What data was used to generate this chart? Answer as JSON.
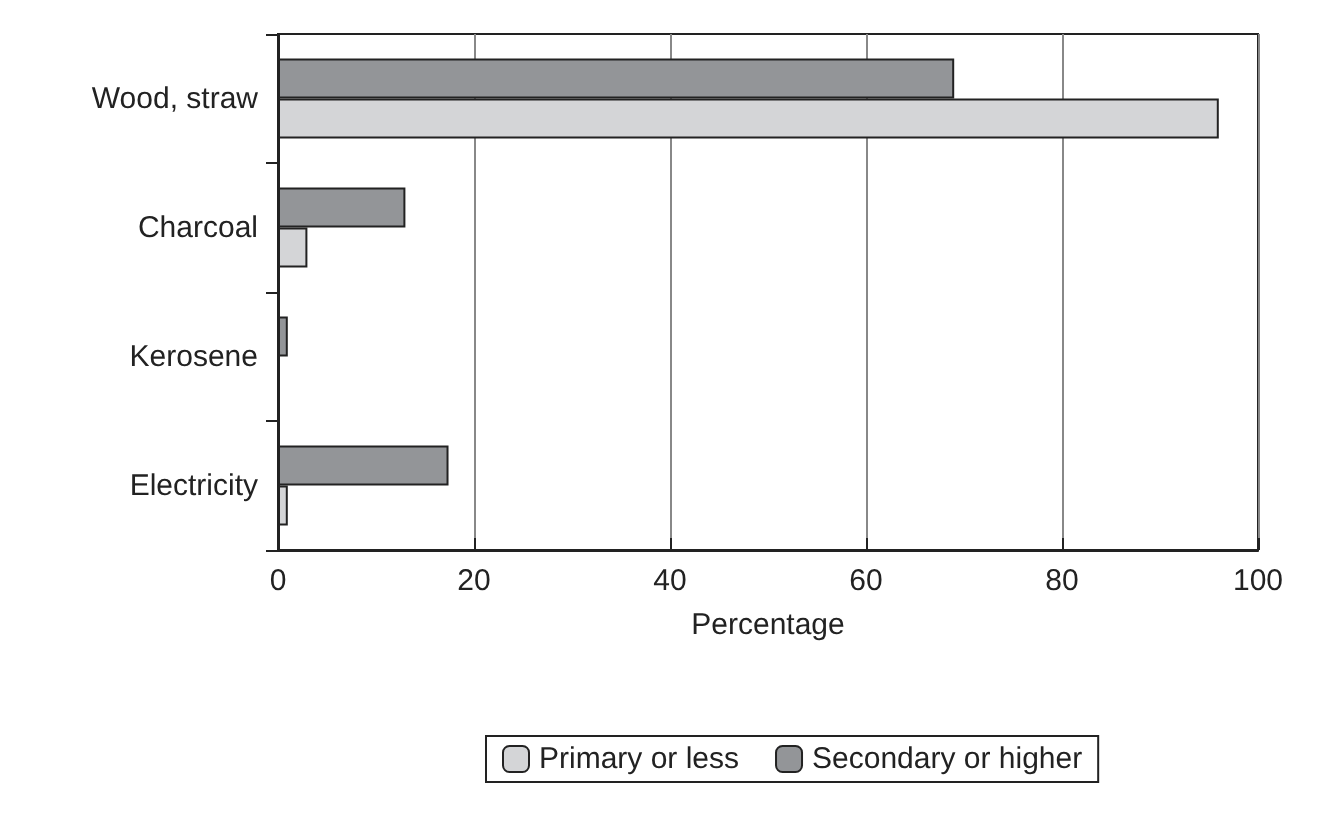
{
  "chart_data": {
    "type": "bar",
    "orientation": "horizontal",
    "categories": [
      "Wood, straw",
      "Charcoal",
      "Kerosene",
      "Electricity"
    ],
    "series": [
      {
        "name": "Secondary or higher",
        "color": "#939598",
        "values": [
          69,
          13,
          1,
          17.4
        ]
      },
      {
        "name": "Primary or less",
        "color": "#d4d5d7",
        "values": [
          96,
          3,
          null,
          1
        ]
      }
    ],
    "xlabel": "Percentage",
    "xlim": [
      0,
      100
    ],
    "xticks": [
      0,
      20,
      40,
      60,
      80,
      100
    ],
    "grid": "x",
    "legend": "bottom"
  }
}
